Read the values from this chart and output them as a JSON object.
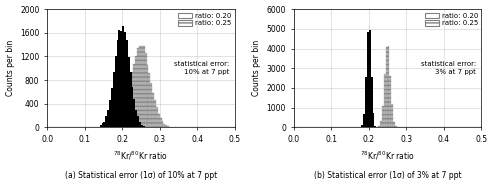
{
  "panel_a": {
    "mean1": 0.2,
    "mean2": 0.25,
    "sigma1": 0.02,
    "sigma2": 0.025,
    "n_samples": 17500,
    "ylim": [
      0,
      2000
    ],
    "yticks": [
      0,
      400,
      800,
      1200,
      1600,
      2000
    ],
    "annotation": "statistical error:\n10% at 7 ppt",
    "legend_labels": [
      "ratio: 0.20",
      "ratio: 0.25"
    ],
    "subtitle": "(a) Statistical error (1σ) of 10% at 7 ppt"
  },
  "panel_b": {
    "mean1": 0.2,
    "mean2": 0.25,
    "sigma1": 0.006,
    "sigma2": 0.0075,
    "n_samples": 16500,
    "ylim": [
      0,
      6000
    ],
    "yticks": [
      0,
      1000,
      2000,
      3000,
      4000,
      5000,
      6000
    ],
    "annotation": "statistical error:\n3% at 7 ppt",
    "legend_labels": [
      "ratio: 0.20",
      "ratio: 0.25"
    ],
    "subtitle": "(b) Statistical error (1σ) of 3% at 7 ppt"
  },
  "xlabel": "$^{78}$Kr/$^{80}$$^{ }$Kr ratio",
  "ylabel": "Counts per bin",
  "xlim": [
    0,
    0.5
  ],
  "xticks": [
    0,
    0.1,
    0.2,
    0.3,
    0.4,
    0.5
  ],
  "n_bins": 100,
  "color1": "black",
  "color2": "#bbbbbb",
  "background": "white",
  "grid_color": "#cccccc"
}
